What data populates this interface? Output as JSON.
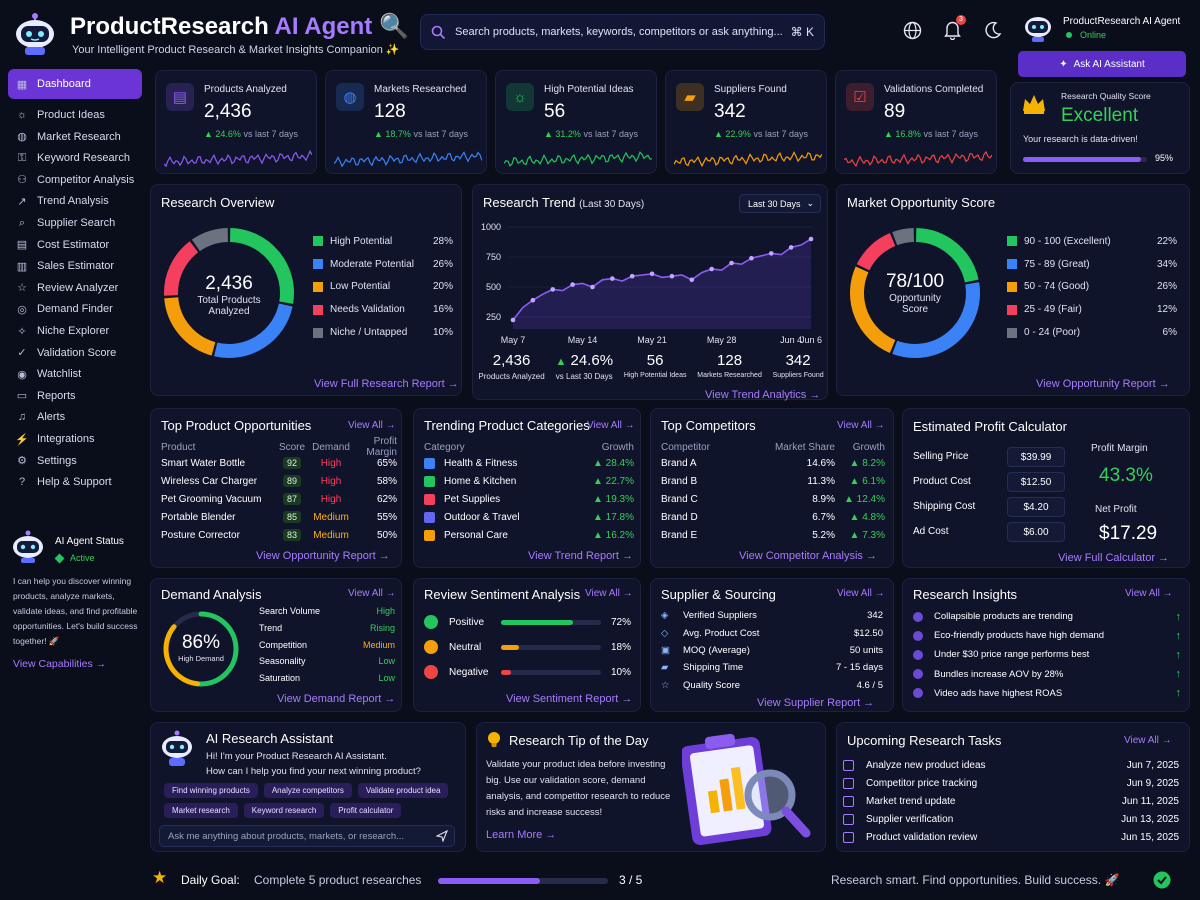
{
  "header": {
    "brand_main": "ProductResearch",
    "brand_ai": "AI Agent",
    "subtitle": "Your Intelligent Product Research & Market Insights Companion ✨",
    "search_placeholder": "Search products, markets, keywords, competitors or ask anything...",
    "search_shortcut": "⌘ K",
    "notification_count": "3",
    "user_name": "ProductResearch AI Agent",
    "user_status": "Online",
    "ask_button": "Ask AI Assistant"
  },
  "sidebar": {
    "items": [
      {
        "label": "Dashboard",
        "icon": "grid-icon"
      },
      {
        "label": "Product Ideas",
        "icon": "lightbulb-icon"
      },
      {
        "label": "Market Research",
        "icon": "globe-icon"
      },
      {
        "label": "Keyword Research",
        "icon": "key-icon"
      },
      {
        "label": "Competitor Analysis",
        "icon": "users-icon"
      },
      {
        "label": "Trend Analysis",
        "icon": "trend-icon"
      },
      {
        "label": "Supplier Search",
        "icon": "search-icon"
      },
      {
        "label": "Cost Estimator",
        "icon": "calculator-icon"
      },
      {
        "label": "Sales Estimator",
        "icon": "chart-icon"
      },
      {
        "label": "Review Analyzer",
        "icon": "star-icon"
      },
      {
        "label": "Demand Finder",
        "icon": "target-icon"
      },
      {
        "label": "Niche Explorer",
        "icon": "compass-icon"
      },
      {
        "label": "Validation Score",
        "icon": "check-icon"
      },
      {
        "label": "Watchlist",
        "icon": "eye-icon"
      },
      {
        "label": "Reports",
        "icon": "document-icon"
      },
      {
        "label": "Alerts",
        "icon": "bell-icon"
      },
      {
        "label": "Integrations",
        "icon": "plug-icon"
      },
      {
        "label": "Settings",
        "icon": "gear-icon"
      },
      {
        "label": "Help & Support",
        "icon": "help-icon"
      }
    ],
    "agent_status_title": "AI Agent Status",
    "agent_status_value": "Active",
    "agent_description": "I can help you discover winning products, analyze markets, validate ideas, and find profitable opportunities. Let's build success together! 🚀",
    "view_capabilities": "View Capabilities →"
  },
  "kpis": [
    {
      "label": "Products Analyzed",
      "value": "2,436",
      "delta": "▲ 24.6%",
      "period": "vs last 7 days",
      "color": "#8b5cf6",
      "icon": "document-icon"
    },
    {
      "label": "Markets Researched",
      "value": "128",
      "delta": "▲ 18.7%",
      "period": "vs last 7 days",
      "color": "#3b82f6",
      "icon": "globe-icon"
    },
    {
      "label": "High Potential Ideas",
      "value": "56",
      "delta": "▲ 31.2%",
      "period": "vs last 7 days",
      "color": "#22c55e",
      "icon": "lightbulb-icon"
    },
    {
      "label": "Suppliers Found",
      "value": "342",
      "delta": "▲ 22.9%",
      "period": "vs last 7 days",
      "color": "#f59e0b",
      "icon": "truck-icon"
    },
    {
      "label": "Validations Completed",
      "value": "89",
      "delta": "▲ 16.8%",
      "period": "vs last 7 days",
      "color": "#ef4444",
      "icon": "checkbox-icon"
    }
  ],
  "quality": {
    "label": "Research Quality Score",
    "value": "Excellent",
    "note": "Your research is data-driven!",
    "percent": "95%",
    "fraction": 0.95
  },
  "overview": {
    "title": "Research Overview",
    "center_value": "2,436",
    "center_label1": "Total Products",
    "center_label2": "Analyzed",
    "legend": [
      {
        "label": "High Potential",
        "pct": "28%",
        "value": 28,
        "color": "#22c55e"
      },
      {
        "label": "Moderate Potential",
        "pct": "26%",
        "value": 26,
        "color": "#3b82f6"
      },
      {
        "label": "Low Potential",
        "pct": "20%",
        "value": 20,
        "color": "#f59e0b"
      },
      {
        "label": "Needs Validation",
        "pct": "16%",
        "value": 16,
        "color": "#f43f5e"
      },
      {
        "label": "Niche / Untapped",
        "pct": "10%",
        "value": 10,
        "color": "#6b7280"
      }
    ],
    "link": "View Full Research Report →"
  },
  "trend": {
    "title": "Research Trend",
    "title_note": "(Last 30 Days)",
    "period_select": "Last 30 Days",
    "stats": [
      {
        "value": "2,436",
        "label": "Products Analyzed"
      },
      {
        "value": "▲ 24.6%",
        "label": "vs Last 30 Days"
      },
      {
        "value": "56",
        "label": "High Potential Ideas"
      },
      {
        "value": "128",
        "label": "Markets Researched"
      },
      {
        "value": "342",
        "label": "Suppliers Found"
      }
    ],
    "link": "View Trend Analytics →"
  },
  "chart_data": {
    "type": "line",
    "x": [
      "May 7",
      "May 8",
      "May 9",
      "May 10",
      "May 11",
      "May 12",
      "May 13",
      "May 14",
      "May 15",
      "May 16",
      "May 17",
      "May 18",
      "May 19",
      "May 20",
      "May 21",
      "May 22",
      "May 23",
      "May 24",
      "May 25",
      "May 26",
      "May 27",
      "May 28",
      "May 29",
      "May 30",
      "May 31",
      "Jun 1",
      "Jun 2",
      "Jun 3",
      "Jun 4",
      "Jun 5",
      "Jun 6"
    ],
    "xticks": [
      "May 7",
      "May 14",
      "May 21",
      "May 28",
      "Jun 4",
      "Jun 6"
    ],
    "values": [
      225,
      330,
      390,
      440,
      480,
      470,
      520,
      530,
      500,
      560,
      570,
      550,
      590,
      600,
      610,
      580,
      590,
      600,
      560,
      620,
      650,
      640,
      700,
      690,
      740,
      760,
      780,
      770,
      830,
      850,
      900
    ],
    "yticks": [
      250,
      500,
      750,
      1000
    ],
    "ylim": [
      150,
      1000
    ]
  },
  "opportunity": {
    "title": "Market Opportunity Score",
    "center_value": "78/100",
    "center_label1": "Opportunity",
    "center_label2": "Score",
    "legend": [
      {
        "label": "90 - 100 (Excellent)",
        "pct": "22%",
        "value": 22,
        "color": "#22c55e"
      },
      {
        "label": "75 - 89 (Great)",
        "pct": "34%",
        "value": 34,
        "color": "#3b82f6"
      },
      {
        "label": "50 - 74 (Good)",
        "pct": "26%",
        "value": 26,
        "color": "#f59e0b"
      },
      {
        "label": "25 - 49 (Fair)",
        "pct": "12%",
        "value": 12,
        "color": "#f43f5e"
      },
      {
        "label": "0 - 24 (Poor)",
        "pct": "6%",
        "value": 6,
        "color": "#6b7280"
      }
    ],
    "link": "View Opportunity Report →"
  },
  "top_products": {
    "title": "Top Product Opportunities",
    "view_all": "View All →",
    "headers": [
      "Product",
      "Score",
      "Demand",
      "Profit Margin"
    ],
    "rows": [
      {
        "name": "Smart Water Bottle",
        "score": "92",
        "demand": "High",
        "margin": "65%",
        "demand_color": "#ff3b5c"
      },
      {
        "name": "Wireless Car Charger",
        "score": "89",
        "demand": "High",
        "margin": "58%",
        "demand_color": "#ff3b5c"
      },
      {
        "name": "Pet Grooming Vacuum",
        "score": "87",
        "demand": "High",
        "margin": "62%",
        "demand_color": "#ff3b5c"
      },
      {
        "name": "Portable Blender",
        "score": "85",
        "demand": "Medium",
        "margin": "55%",
        "demand_color": "#ffae19"
      },
      {
        "name": "Posture Corrector",
        "score": "83",
        "demand": "Medium",
        "margin": "50%",
        "demand_color": "#ffae19"
      }
    ],
    "link": "View Opportunity Report →"
  },
  "categories": {
    "title": "Trending Product Categories",
    "view_all": "View All →",
    "headers": [
      "Category",
      "Growth"
    ],
    "rows": [
      {
        "name": "Health & Fitness",
        "growth": "▲ 28.4%",
        "color": "#3b82f6"
      },
      {
        "name": "Home & Kitchen",
        "growth": "▲ 22.7%",
        "color": "#22c55e"
      },
      {
        "name": "Pet Supplies",
        "growth": "▲ 19.3%",
        "color": "#f43f5e"
      },
      {
        "name": "Outdoor & Travel",
        "growth": "▲ 17.8%",
        "color": "#6366f1"
      },
      {
        "name": "Personal Care",
        "growth": "▲ 16.2%",
        "color": "#f59e0b"
      }
    ],
    "link": "View Trend Report →"
  },
  "competitors": {
    "title": "Top Competitors",
    "view_all": "View All →",
    "headers": [
      "Competitor",
      "Market Share",
      "Growth"
    ],
    "rows": [
      {
        "name": "Brand A",
        "share": "14.6%",
        "growth": "▲ 8.2%"
      },
      {
        "name": "Brand B",
        "share": "11.3%",
        "growth": "▲ 6.1%"
      },
      {
        "name": "Brand C",
        "share": "8.9%",
        "growth": "▲ 12.4%"
      },
      {
        "name": "Brand D",
        "share": "6.7%",
        "growth": "▲ 4.8%"
      },
      {
        "name": "Brand E",
        "share": "5.2%",
        "growth": "▲ 7.3%"
      }
    ],
    "link": "View Competitor Analysis →"
  },
  "calculator": {
    "title": "Estimated Profit Calculator",
    "fields": [
      {
        "label": "Selling Price",
        "value": "$39.99"
      },
      {
        "label": "Product Cost",
        "value": "$12.50"
      },
      {
        "label": "Shipping Cost",
        "value": "$4.20"
      },
      {
        "label": "Ad Cost",
        "value": "$6.00"
      }
    ],
    "margin_label": "Profit Margin",
    "margin_value": "43.3%",
    "net_label": "Net Profit",
    "net_value": "$17.29",
    "link": "View Full Calculator →"
  },
  "demand": {
    "title": "Demand Analysis",
    "view_all": "View All →",
    "gauge_value": "86%",
    "gauge_fraction": 0.86,
    "gauge_label": "High Demand",
    "rows": [
      {
        "label": "Search Volume",
        "value": "High"
      },
      {
        "label": "Trend",
        "value": "Rising"
      },
      {
        "label": "Competition",
        "value": "Medium"
      },
      {
        "label": "Seasonality",
        "value": "Low"
      },
      {
        "label": "Saturation",
        "value": "Low"
      }
    ],
    "link": "View Demand Report →"
  },
  "sentiment": {
    "title": "Review Sentiment Analysis",
    "view_all": "View All →",
    "rows": [
      {
        "label": "Positive",
        "pct": "72%",
        "value": 0.72,
        "color": "#22c55e"
      },
      {
        "label": "Neutral",
        "pct": "18%",
        "value": 0.18,
        "color": "#f59e0b"
      },
      {
        "label": "Negative",
        "pct": "10%",
        "value": 0.1,
        "color": "#ef4444"
      }
    ],
    "link": "View Sentiment Report →"
  },
  "supplier": {
    "title": "Supplier & Sourcing",
    "view_all": "View All →",
    "rows": [
      {
        "label": "Verified Suppliers",
        "value": "342"
      },
      {
        "label": "Avg. Product Cost",
        "value": "$12.50"
      },
      {
        "label": "MOQ (Average)",
        "value": "50 units"
      },
      {
        "label": "Shipping Time",
        "value": "7 - 15 days"
      },
      {
        "label": "Quality Score",
        "value": "4.6 / 5"
      }
    ],
    "link": "View Supplier Report →"
  },
  "insights": {
    "title": "Research Insights",
    "view_all": "View All →",
    "rows": [
      "Collapsible products are trending",
      "Eco-friendly products have high demand",
      "Under $30 price range performs best",
      "Bundles increase AOV by 28%",
      "Video ads have highest ROAS"
    ]
  },
  "assistant": {
    "title": "AI Research Assistant",
    "greeting1": "Hi! I'm your Product Research AI Assistant.",
    "greeting2": "How can I help you find your next winning product?",
    "chips": [
      "Find winning products",
      "Analyze competitors",
      "Validate product idea",
      "Market research",
      "Keyword research",
      "Profit calculator"
    ],
    "input_placeholder": "Ask me anything about products, markets, or research..."
  },
  "tip": {
    "title": "Research Tip of the Day",
    "text": "Validate your product idea before investing big. Use our validation score, demand analysis, and competitor research to reduce risks and increase success!",
    "link": "Learn More →"
  },
  "tasks": {
    "title": "Upcoming Research Tasks",
    "view_all": "View All →",
    "rows": [
      {
        "label": "Analyze new product ideas",
        "date": "Jun 7, 2025"
      },
      {
        "label": "Competitor price tracking",
        "date": "Jun 9, 2025"
      },
      {
        "label": "Market trend update",
        "date": "Jun 11, 2025"
      },
      {
        "label": "Supplier verification",
        "date": "Jun 13, 2025"
      },
      {
        "label": "Product validation review",
        "date": "Jun 15, 2025"
      }
    ]
  },
  "footer": {
    "goal_label": "Daily Goal:",
    "goal_text": "Complete 5 product researches",
    "goal_progress": "3 / 5",
    "goal_fraction": 0.6,
    "tagline": "Research smart. Find opportunities. Build success. 🚀"
  }
}
